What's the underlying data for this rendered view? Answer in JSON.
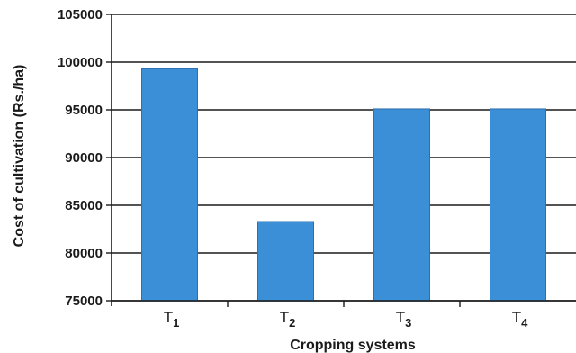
{
  "chart_data": {
    "type": "bar",
    "title": "",
    "xlabel": "Cropping systems",
    "ylabel": "Cost of cultivation (Rs./ha)",
    "categories": [
      {
        "base": "T",
        "sub": "1"
      },
      {
        "base": "T",
        "sub": "2"
      },
      {
        "base": "T",
        "sub": "3"
      },
      {
        "base": "T",
        "sub": "4"
      }
    ],
    "values": [
      99300,
      83300,
      95100,
      95100
    ],
    "ylim": [
      75000,
      105000
    ],
    "yticks": [
      "75000",
      "80000",
      "85000",
      "90000",
      "95000",
      "100000",
      "105000"
    ],
    "grid": true,
    "legend": "none",
    "bar_color": "#3a8fd6",
    "bar_edge_color": "#2f6fae",
    "axis_color": "#1a1a1a",
    "grid_color": "#1a1a1a"
  }
}
